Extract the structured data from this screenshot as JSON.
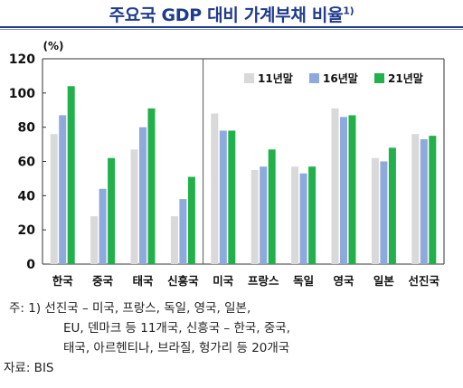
{
  "title": "주요국 GDP 대비 가계부채 비율",
  "title_footnote": "1)",
  "chart_data": {
    "type": "bar",
    "categories": [
      "한국",
      "중국",
      "태국",
      "신흥국",
      "미국",
      "프랑스",
      "독일",
      "영국",
      "일본",
      "선진국"
    ],
    "series": [
      {
        "name": "11년말",
        "color": "#d9d9d9",
        "values": [
          76,
          28,
          67,
          28,
          88,
          55,
          57,
          91,
          62,
          76
        ]
      },
      {
        "name": "16년말",
        "color": "#8ea9db",
        "values": [
          87,
          44,
          80,
          38,
          78,
          57,
          53,
          86,
          60,
          73
        ]
      },
      {
        "name": "21년말",
        "color": "#22b04b",
        "values": [
          104,
          62,
          91,
          51,
          78,
          67,
          57,
          87,
          68,
          75
        ]
      }
    ],
    "unit_label": "(%)",
    "ylim": [
      0,
      120
    ],
    "yticks": [
      "0",
      "20",
      "40",
      "60",
      "80",
      "100",
      "120"
    ],
    "grid": false,
    "legend_position": "top-right",
    "divider_after_category_index": 3
  },
  "notes": {
    "line1": "주:  1) 선진국 – 미국, 프랑스, 독일, 영국, 일본,",
    "line2": "EU, 덴마크 등 11개국, 신흥국 – 한국, 중국,",
    "line3": "태국, 아르헨티나, 브라질, 헝가리 등 20개국",
    "source": "자료: BIS"
  }
}
